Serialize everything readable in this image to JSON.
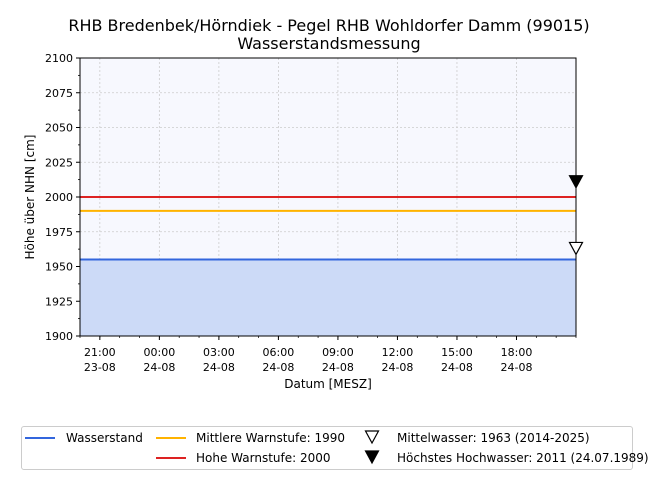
{
  "chart_data": {
    "type": "line",
    "title": "RHB Bredenbek/Hörndiek - Pegel RHB Wohldorfer Damm (99015)",
    "subtitle": "Wasserstandsmessung",
    "xlabel": "Datum [MESZ]",
    "ylabel": "Höhe über NHN [cm]",
    "ylim": [
      1900,
      2100
    ],
    "xlim": [
      "2025-08-23 20:00",
      "2025-08-24 21:00"
    ],
    "grid": true,
    "yticks": [
      "1900",
      "1925",
      "1950",
      "1975",
      "2000",
      "2025",
      "2050",
      "2075",
      "2100"
    ],
    "xticks": [
      {
        "time": "21:00",
        "date": "23-08",
        "x": "2025-08-23 21:00"
      },
      {
        "time": "00:00",
        "date": "24-08",
        "x": "2025-08-24 00:00"
      },
      {
        "time": "03:00",
        "date": "24-08",
        "x": "2025-08-24 03:00"
      },
      {
        "time": "06:00",
        "date": "24-08",
        "x": "2025-08-24 06:00"
      },
      {
        "time": "09:00",
        "date": "24-08",
        "x": "2025-08-24 09:00"
      },
      {
        "time": "12:00",
        "date": "24-08",
        "x": "2025-08-24 12:00"
      },
      {
        "time": "15:00",
        "date": "24-08",
        "x": "2025-08-24 15:00"
      },
      {
        "time": "18:00",
        "date": "24-08",
        "x": "2025-08-24 18:00"
      }
    ],
    "series": [
      {
        "name": "Wasserstand",
        "color": "#3366dd",
        "fill": "#ccdaf7",
        "x": [
          "2025-08-23 20:00",
          "2025-08-24 21:00"
        ],
        "values": [
          1955,
          1955
        ]
      },
      {
        "name": "Mittlere Warnstufe: 1990",
        "color": "#ffb300",
        "x": [
          "2025-08-23 20:00",
          "2025-08-24 21:00"
        ],
        "values": [
          1990,
          1990
        ]
      },
      {
        "name": "Hohe Warnstufe: 2000",
        "color": "#dd2222",
        "x": [
          "2025-08-23 20:00",
          "2025-08-24 21:00"
        ],
        "values": [
          2000,
          2000
        ]
      }
    ],
    "markers": [
      {
        "name": "Mittelwasser: 1963 (2014-2025)",
        "symbol": "triangle-down-open",
        "x": "2025-08-24 21:00",
        "value": 1963
      },
      {
        "name": "Höchstes Hochwasser: 2011 (24.07.1989)",
        "symbol": "triangle-down-filled",
        "x": "2025-08-24 21:00",
        "value": 2011
      }
    ],
    "legend_position": "bottom"
  },
  "colors": {
    "plot_background": "#f7f8fe",
    "grid": "#cccccc"
  }
}
